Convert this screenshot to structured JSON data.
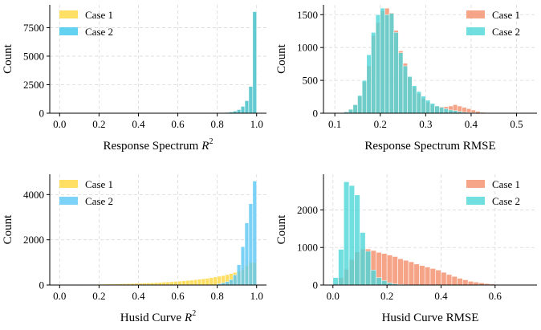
{
  "figure": {
    "background": "#ffffff",
    "grid_color": "#d9d9d9"
  },
  "chart_data": [
    {
      "id": "resp-r2",
      "type": "histogram",
      "xlabel": "Response Spectrum",
      "xlabel_math": "R",
      "xlabel_sup": "2",
      "ylabel": "Count",
      "xlim": [
        -0.05,
        1.05
      ],
      "ylim": [
        0,
        9500
      ],
      "xticks": [
        0,
        0.2,
        0.4,
        0.6,
        0.8,
        1.0
      ],
      "xtick_labels": [
        "0.0",
        "0.2",
        "0.4",
        "0.6",
        "0.8",
        "1.0"
      ],
      "yticks": [
        0,
        2500,
        5000,
        7500
      ],
      "ytick_labels": [
        "0",
        "2500",
        "5000",
        "7500"
      ],
      "grid": true,
      "legend_position": "top-left",
      "bin_width": 0.02,
      "series": [
        {
          "name": "Case 1",
          "color": "#ffd83d",
          "bin_starts": [
            0.74,
            0.76,
            0.78,
            0.8,
            0.82,
            0.84,
            0.86,
            0.88,
            0.9,
            0.92,
            0.94,
            0.96,
            0.98
          ],
          "values": [
            5,
            10,
            15,
            25,
            40,
            70,
            110,
            190,
            320,
            600,
            1100,
            2350,
            8900
          ]
        },
        {
          "name": "Case 2",
          "color": "#3cc6ec",
          "bin_starts": [
            0.74,
            0.76,
            0.78,
            0.8,
            0.82,
            0.84,
            0.86,
            0.88,
            0.9,
            0.92,
            0.94,
            0.96,
            0.98
          ],
          "values": [
            5,
            10,
            15,
            25,
            40,
            70,
            110,
            190,
            320,
            600,
            1100,
            2350,
            8900
          ]
        }
      ]
    },
    {
      "id": "resp-rmse",
      "type": "histogram",
      "xlabel": "Response Spectrum RMSE",
      "xlabel_math": "",
      "xlabel_sup": "",
      "ylabel": "Count",
      "xlim": [
        0.075,
        0.545
      ],
      "ylim": [
        0,
        1650
      ],
      "xticks": [
        0.1,
        0.2,
        0.3,
        0.4,
        0.5
      ],
      "xtick_labels": [
        "0.1",
        "0.2",
        "0.3",
        "0.4",
        "0.5"
      ],
      "yticks": [
        0,
        500,
        1000,
        1500
      ],
      "ytick_labels": [
        "0",
        "500",
        "1000",
        "1500"
      ],
      "grid": true,
      "legend_position": "top-right",
      "bin_width": 0.01,
      "series": [
        {
          "name": "Case 1",
          "color": "#f58e6b",
          "bin_starts": [
            0.12,
            0.13,
            0.14,
            0.15,
            0.16,
            0.17,
            0.18,
            0.19,
            0.2,
            0.21,
            0.22,
            0.23,
            0.24,
            0.25,
            0.26,
            0.27,
            0.28,
            0.29,
            0.3,
            0.31,
            0.32,
            0.33,
            0.34,
            0.35,
            0.36,
            0.37,
            0.38,
            0.39,
            0.4,
            0.41,
            0.42
          ],
          "values": [
            20,
            60,
            130,
            260,
            480,
            720,
            1180,
            1380,
            1560,
            1600,
            1530,
            1260,
            950,
            760,
            550,
            400,
            300,
            230,
            170,
            130,
            110,
            100,
            100,
            110,
            130,
            110,
            90,
            70,
            50,
            30,
            15
          ]
        },
        {
          "name": "Case 2",
          "color": "#4ed6d8",
          "bin_starts": [
            0.12,
            0.13,
            0.14,
            0.15,
            0.16,
            0.17,
            0.18,
            0.19,
            0.2,
            0.21,
            0.22,
            0.23,
            0.24,
            0.25,
            0.26,
            0.27,
            0.28,
            0.29,
            0.3,
            0.31,
            0.32,
            0.33,
            0.34,
            0.35,
            0.36,
            0.37,
            0.38,
            0.39,
            0.4,
            0.41,
            0.42,
            0.43,
            0.44,
            0.45,
            0.46,
            0.47,
            0.48,
            0.49,
            0.5,
            0.51
          ],
          "values": [
            20,
            60,
            130,
            270,
            500,
            890,
            1230,
            1500,
            1600,
            1500,
            1520,
            1230,
            920,
            720,
            560,
            420,
            330,
            260,
            200,
            150,
            110,
            90,
            70,
            50,
            40,
            25,
            15,
            10,
            8,
            5,
            5,
            5,
            5,
            5,
            5,
            5,
            5,
            5,
            5,
            5
          ]
        }
      ]
    },
    {
      "id": "husid-r2",
      "type": "histogram",
      "xlabel": "Husid Curve",
      "xlabel_math": "R",
      "xlabel_sup": "2",
      "ylabel": "Count",
      "xlim": [
        -0.05,
        1.05
      ],
      "ylim": [
        0,
        4900
      ],
      "xticks": [
        0,
        0.2,
        0.4,
        0.6,
        0.8,
        1.0
      ],
      "xtick_labels": [
        "0.0",
        "0.2",
        "0.4",
        "0.6",
        "0.8",
        "1.0"
      ],
      "yticks": [
        0,
        2000,
        4000
      ],
      "ytick_labels": [
        "0",
        "2000",
        "4000"
      ],
      "grid": true,
      "legend_position": "top-left",
      "bin_width": 0.02,
      "series": [
        {
          "name": "Case 1",
          "color": "#ffd83d",
          "bin_starts": [
            0.0,
            0.02,
            0.04,
            0.06,
            0.08,
            0.1,
            0.12,
            0.14,
            0.16,
            0.18,
            0.2,
            0.22,
            0.24,
            0.26,
            0.28,
            0.3,
            0.32,
            0.34,
            0.36,
            0.38,
            0.4,
            0.42,
            0.44,
            0.46,
            0.48,
            0.5,
            0.52,
            0.54,
            0.56,
            0.58,
            0.6,
            0.62,
            0.64,
            0.66,
            0.68,
            0.7,
            0.72,
            0.74,
            0.76,
            0.78,
            0.8,
            0.82,
            0.84,
            0.86,
            0.88,
            0.9,
            0.92,
            0.94,
            0.96,
            0.98
          ],
          "values": [
            15,
            15,
            15,
            18,
            20,
            22,
            25,
            28,
            30,
            32,
            35,
            38,
            42,
            45,
            50,
            55,
            60,
            65,
            70,
            75,
            80,
            88,
            95,
            100,
            110,
            120,
            130,
            140,
            150,
            160,
            175,
            190,
            205,
            220,
            240,
            260,
            280,
            300,
            330,
            360,
            390,
            420,
            460,
            510,
            560,
            620,
            700,
            850,
            1000,
            1000
          ]
        },
        {
          "name": "Case 2",
          "color": "#5cc8f5",
          "bin_starts": [
            0.8,
            0.82,
            0.84,
            0.86,
            0.88,
            0.9,
            0.92,
            0.94,
            0.96,
            0.98
          ],
          "values": [
            60,
            100,
            150,
            240,
            450,
            900,
            1700,
            2750,
            3600,
            4600
          ]
        }
      ]
    },
    {
      "id": "husid-rmse",
      "type": "histogram",
      "xlabel": "Husid Curve RMSE",
      "xlabel_math": "",
      "xlabel_sup": "",
      "ylabel": "Count",
      "xlim": [
        -0.035,
        0.755
      ],
      "ylim": [
        0,
        2950
      ],
      "xticks": [
        0,
        0.2,
        0.4,
        0.6
      ],
      "xtick_labels": [
        "0.0",
        "0.2",
        "0.4",
        "0.6"
      ],
      "yticks": [
        0,
        1000,
        2000
      ],
      "ytick_labels": [
        "0",
        "1000",
        "2000"
      ],
      "grid": true,
      "legend_position": "top-right",
      "bin_width": 0.02,
      "series": [
        {
          "name": "Case 1",
          "color": "#f58e6b",
          "bin_starts": [
            0.0,
            0.02,
            0.04,
            0.06,
            0.08,
            0.1,
            0.12,
            0.14,
            0.16,
            0.18,
            0.2,
            0.22,
            0.24,
            0.26,
            0.28,
            0.3,
            0.32,
            0.34,
            0.36,
            0.38,
            0.4,
            0.42,
            0.44,
            0.46,
            0.48,
            0.5,
            0.52,
            0.54,
            0.56,
            0.58,
            0.6,
            0.62,
            0.64,
            0.66,
            0.68,
            0.7
          ],
          "values": [
            40,
            200,
            420,
            680,
            880,
            960,
            960,
            920,
            870,
            840,
            800,
            760,
            700,
            660,
            620,
            560,
            520,
            480,
            440,
            400,
            340,
            280,
            230,
            180,
            140,
            100,
            80,
            60,
            40,
            25,
            15,
            10,
            8,
            5,
            5,
            5
          ]
        },
        {
          "name": "Case 2",
          "color": "#4ed6d8",
          "bin_starts": [
            0.0,
            0.02,
            0.04,
            0.06,
            0.08,
            0.1,
            0.12,
            0.14,
            0.16,
            0.18,
            0.2,
            0.22,
            0.24,
            0.26,
            0.28,
            0.3
          ],
          "values": [
            200,
            950,
            2750,
            2650,
            2400,
            1400,
            900,
            400,
            200,
            120,
            60,
            30,
            15,
            8,
            5,
            3
          ]
        }
      ]
    }
  ]
}
